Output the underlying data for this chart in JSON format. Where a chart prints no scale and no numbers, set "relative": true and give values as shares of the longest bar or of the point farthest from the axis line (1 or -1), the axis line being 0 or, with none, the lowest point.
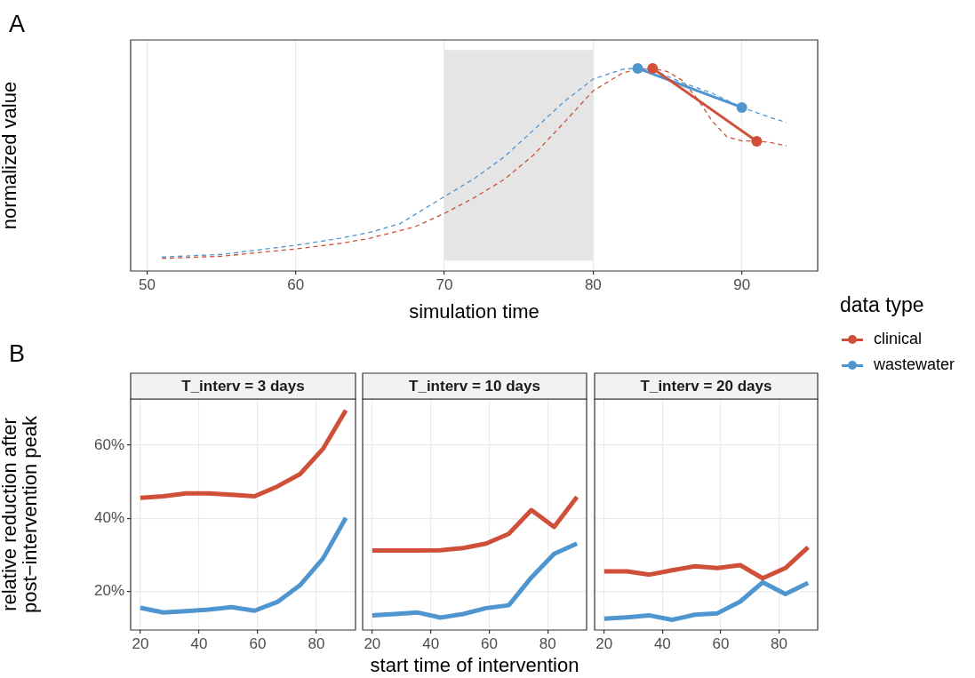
{
  "chart_data": [
    {
      "type": "line",
      "xlabel": "simulation time",
      "ylabel": "normalized value",
      "relative": true,
      "annotations": [
        "A"
      ],
      "xlim": [
        48.9,
        95.1
      ],
      "xticks": [
        50,
        60,
        70,
        80,
        90
      ],
      "grid": "x",
      "legend": "right",
      "legend_title": "data type",
      "bands": [
        {
          "axis": "x",
          "from": 70,
          "to": 80,
          "color": "#e5e5e5"
        }
      ],
      "series": [
        {
          "name": "clinical",
          "color": "#cf4f39",
          "line_style": "solid",
          "marker": "circle",
          "x": [
            84,
            91
          ],
          "values": [
            1.0,
            0.64
          ]
        },
        {
          "name": "wastewater",
          "color": "#4f95d0",
          "line_style": "solid",
          "marker": "circle",
          "x": [
            83,
            90
          ],
          "values": [
            1.0,
            0.807
          ]
        },
        {
          "color": "#4f95d0",
          "line_style": "dashed",
          "marker": "none",
          "x": [
            51,
            55,
            60,
            63,
            65,
            67,
            70,
            72,
            74,
            76,
            78,
            80,
            82,
            83,
            84,
            86,
            88,
            90,
            92,
            93
          ],
          "values": [
            0.069,
            0.082,
            0.127,
            0.162,
            0.191,
            0.233,
            0.367,
            0.456,
            0.562,
            0.696,
            0.833,
            0.947,
            0.996,
            1.0,
            0.993,
            0.929,
            0.878,
            0.807,
            0.756,
            0.733
          ]
        },
        {
          "color": "#cf4f39",
          "line_style": "dashed",
          "marker": "none",
          "x": [
            51,
            55,
            60,
            63,
            65,
            68,
            70,
            72,
            74,
            76,
            78,
            80,
            82,
            83,
            84,
            85,
            86,
            87,
            88,
            89,
            90,
            91,
            92,
            93
          ],
          "values": [
            0.062,
            0.073,
            0.109,
            0.136,
            0.162,
            0.218,
            0.284,
            0.362,
            0.451,
            0.573,
            0.729,
            0.889,
            0.978,
            0.996,
            1.0,
            0.984,
            0.94,
            0.851,
            0.74,
            0.662,
            0.642,
            0.642,
            0.633,
            0.618
          ]
        }
      ]
    },
    {
      "type": "line",
      "title": "T_interv = 3 days",
      "ylabel": "relative reduction after\npost−intervention peak",
      "annotations": [
        "B"
      ],
      "xlim": [
        16.7,
        93.3
      ],
      "xticks": [
        20,
        40,
        60,
        80
      ],
      "ylim": [
        9.3,
        72.7
      ],
      "yticks": [
        {
          "value": 20,
          "label": "20%"
        },
        {
          "value": 40,
          "label": "40%"
        },
        {
          "value": 60,
          "label": "60%"
        }
      ],
      "grid": true,
      "marker": "none",
      "line_style": "solid",
      "x": [
        20,
        27.8,
        35.6,
        43.3,
        51.1,
        58.9,
        66.7,
        74.4,
        82.2,
        90
      ],
      "series": [
        {
          "name": "clinical",
          "color": "#cf4f39",
          "values": [
            45.6,
            46.0,
            46.8,
            46.8,
            46.4,
            46.0,
            48.7,
            52.1,
            59.0,
            69.6
          ]
        },
        {
          "name": "wastewater",
          "color": "#4f95d0",
          "values": [
            15.4,
            14.1,
            14.5,
            14.9,
            15.6,
            14.6,
            17.0,
            21.6,
            28.9,
            40.1
          ]
        }
      ]
    },
    {
      "type": "line",
      "title": "T_interv = 10 days",
      "xlabel": "start time of intervention",
      "xlim": [
        16.7,
        93.3
      ],
      "xticks": [
        20,
        40,
        60,
        80
      ],
      "ylim": [
        9.3,
        72.7
      ],
      "yticks": [
        {
          "value": 20,
          "label": null
        },
        {
          "value": 40,
          "label": null
        },
        {
          "value": 60,
          "label": null
        }
      ],
      "grid": true,
      "marker": "none",
      "line_style": "solid",
      "tick_labels": "x",
      "x": [
        20,
        27.8,
        35.6,
        43.3,
        51.1,
        58.9,
        66.7,
        74.4,
        82.2,
        90
      ],
      "series": [
        {
          "name": "clinical",
          "color": "#cf4f39",
          "values": [
            31.1,
            31.1,
            31.1,
            31.2,
            31.8,
            33.0,
            35.7,
            42.2,
            37.6,
            45.8
          ]
        },
        {
          "name": "wastewater",
          "color": "#4f95d0",
          "values": [
            13.3,
            13.7,
            14.1,
            12.7,
            13.7,
            15.3,
            16.1,
            23.7,
            30.2,
            33.0
          ]
        }
      ]
    },
    {
      "type": "line",
      "title": "T_interv = 20 days",
      "xlim": [
        16.7,
        93.3
      ],
      "xticks": [
        20,
        40,
        60,
        80
      ],
      "ylim": [
        9.3,
        72.7
      ],
      "yticks": [
        {
          "value": 20,
          "label": null
        },
        {
          "value": 40,
          "label": null
        },
        {
          "value": 60,
          "label": null
        }
      ],
      "grid": true,
      "marker": "none",
      "line_style": "solid",
      "tick_labels": "x",
      "x": [
        20,
        27.8,
        35.6,
        43.3,
        51.1,
        58.9,
        66.7,
        74.4,
        82.2,
        90
      ],
      "series": [
        {
          "name": "clinical",
          "color": "#cf4f39",
          "values": [
            25.4,
            25.4,
            24.5,
            25.7,
            26.8,
            26.3,
            27.1,
            23.5,
            26.3,
            32.0
          ]
        },
        {
          "name": "wastewater",
          "color": "#4f95d0",
          "values": [
            12.4,
            12.8,
            13.3,
            12.1,
            13.5,
            13.9,
            17.1,
            22.4,
            19.2,
            22.2
          ]
        }
      ]
    }
  ]
}
